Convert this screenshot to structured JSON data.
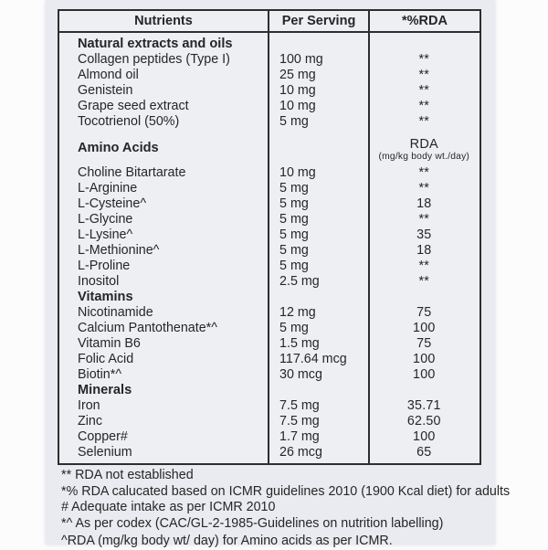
{
  "label": {
    "columns": [
      "Nutrients",
      "Per Serving",
      "*%RDA"
    ],
    "sections": [
      {
        "title": "Natural extracts and oils",
        "gap_before": false,
        "rda_header": null,
        "rows": [
          {
            "name": "Collagen peptides (Type I)",
            "per_serving": "100 mg",
            "rda": "**"
          },
          {
            "name": "Almond oil",
            "per_serving": "25 mg",
            "rda": "**"
          },
          {
            "name": "Genistein",
            "per_serving": "10 mg",
            "rda": "**"
          },
          {
            "name": "Grape seed extract",
            "per_serving": "10 mg",
            "rda": "**"
          },
          {
            "name": "Tocotrienol (50%)",
            "per_serving": "5 mg",
            "rda": "**"
          }
        ]
      },
      {
        "title": "Amino Acids",
        "gap_before": true,
        "rda_header": {
          "line1": "RDA",
          "line2": "(mg/kg body wt./day)"
        },
        "rows": [
          {
            "name": "Choline Bitartarate",
            "per_serving": "10 mg",
            "rda": "**"
          },
          {
            "name": "L-Arginine",
            "per_serving": "5 mg",
            "rda": "**"
          },
          {
            "name": "L-Cysteine^",
            "per_serving": "5 mg",
            "rda": "18"
          },
          {
            "name": "L-Glycine",
            "per_serving": "5 mg",
            "rda": "**"
          },
          {
            "name": "L-Lysine^",
            "per_serving": "5 mg",
            "rda": "35"
          },
          {
            "name": "L-Methionine^",
            "per_serving": "5 mg",
            "rda": "18"
          },
          {
            "name": "L-Proline",
            "per_serving": "5 mg",
            "rda": "**"
          },
          {
            "name": "Inositol",
            "per_serving": "2.5 mg",
            "rda": "**"
          }
        ]
      },
      {
        "title": "Vitamins",
        "gap_before": false,
        "rda_header": null,
        "rows": [
          {
            "name": "Nicotinamide",
            "per_serving": "12 mg",
            "rda": "75"
          },
          {
            "name": "Calcium Pantothenate*^",
            "per_serving": "5 mg",
            "rda": "100"
          },
          {
            "name": "Vitamin B6",
            "per_serving": "1.5 mg",
            "rda": "75"
          },
          {
            "name": "Folic Acid",
            "per_serving": "117.64 mcg",
            "rda": "100"
          },
          {
            "name": "Biotin*^",
            "per_serving": "30 mcg",
            "rda": "100"
          }
        ]
      },
      {
        "title": "Minerals",
        "gap_before": false,
        "rda_header": null,
        "rows": [
          {
            "name": "Iron",
            "per_serving": "7.5 mg",
            "rda": "35.71"
          },
          {
            "name": "Zinc",
            "per_serving": "7.5 mg",
            "rda": "62.50"
          },
          {
            "name": "Copper#",
            "per_serving": "1.7 mg",
            "rda": "100"
          },
          {
            "name": "Selenium",
            "per_serving": "26 mcg",
            "rda": "65"
          }
        ]
      }
    ],
    "footnotes": [
      "** RDA not established",
      "*% RDA calucated based on ICMR guidelines 2010 (1900 Kcal diet) for adults",
      "# Adequate intake as per ICMR 2010",
      "*^ As per codex (CAC/GL-2-1985-Guidelines on nutrition labelling)",
      "^RDA (mg/kg body wt/ day) for Amino acids as per ICMR."
    ],
    "colors": {
      "label_background": "#e9ebf0",
      "table_border": "#2e2e2e",
      "text": "#262626",
      "page_background": "#fcfcfc"
    }
  }
}
